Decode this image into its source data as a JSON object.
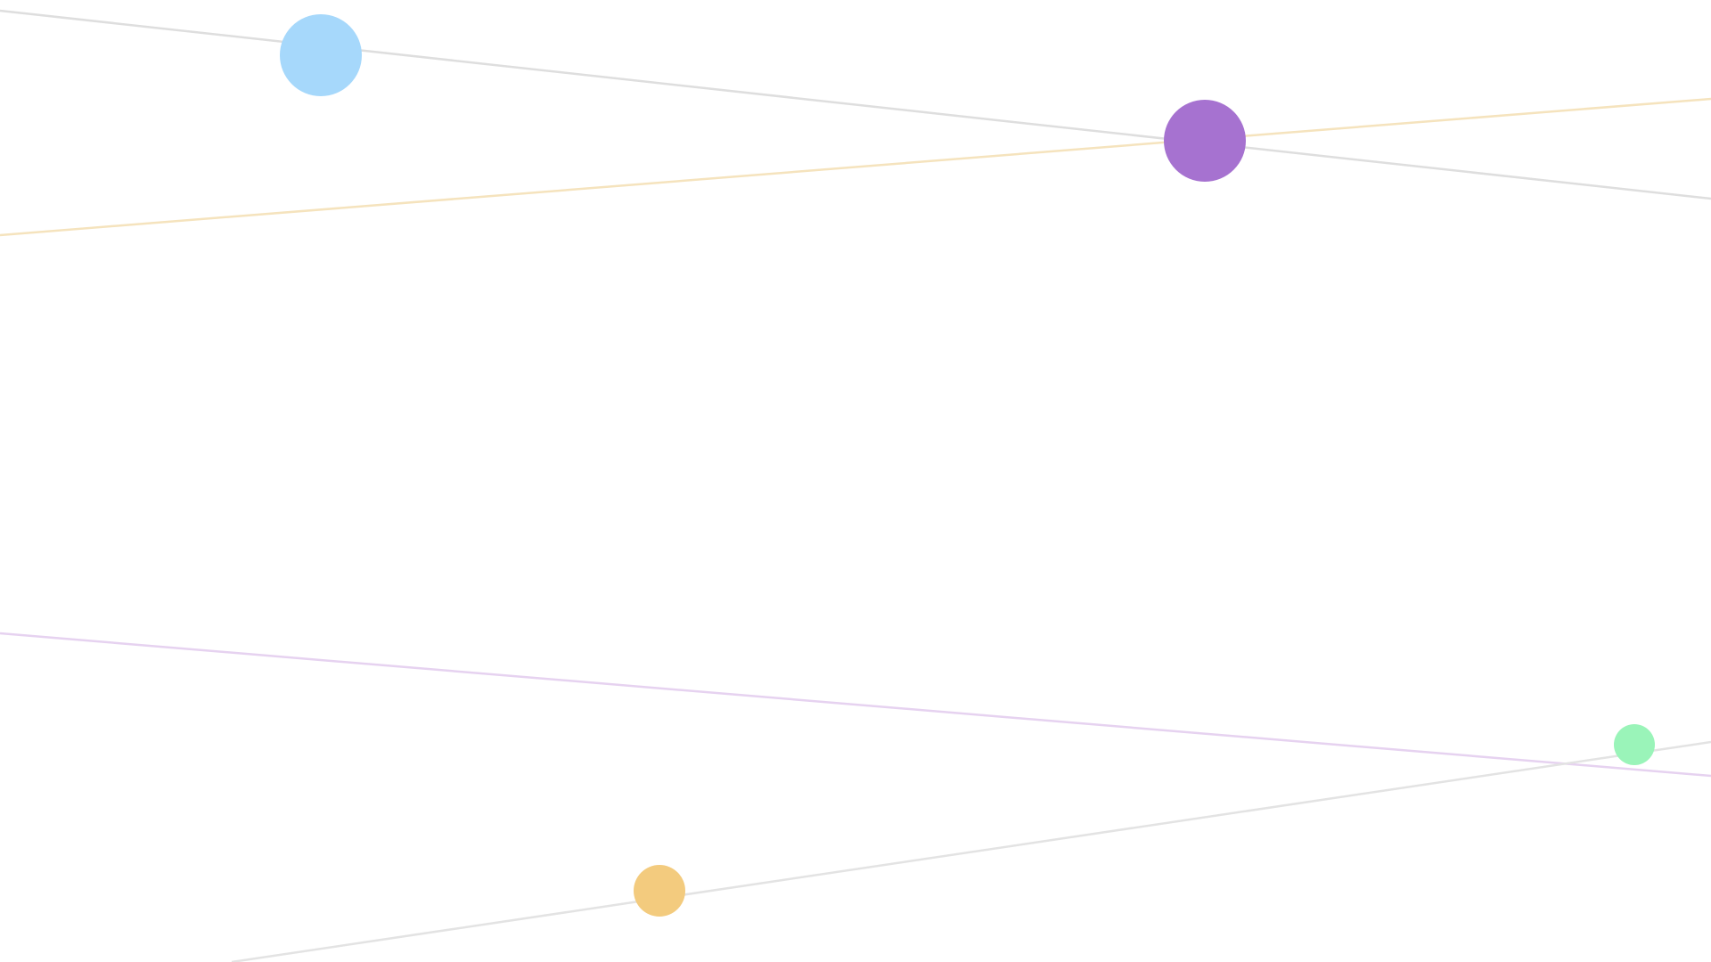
{
  "background_color": "#ffffff",
  "lines": [
    {
      "name": "connector-line-top-gray",
      "color": "#dedede"
    },
    {
      "name": "connector-line-top-yellow",
      "color": "#f5e3bd"
    },
    {
      "name": "connector-line-middle-lavender",
      "color": "#e6d2f0"
    },
    {
      "name": "connector-line-bottom-gray",
      "color": "#e3e3e3"
    }
  ],
  "nodes": [
    {
      "name": "light-blue-circle-node",
      "color": "#a6d8fb"
    },
    {
      "name": "purple-circle-node",
      "color": "#a672d0"
    },
    {
      "name": "mint-green-circle-node",
      "color": "#9af4b9"
    },
    {
      "name": "amber-circle-node",
      "color": "#f3cb7e"
    }
  ]
}
